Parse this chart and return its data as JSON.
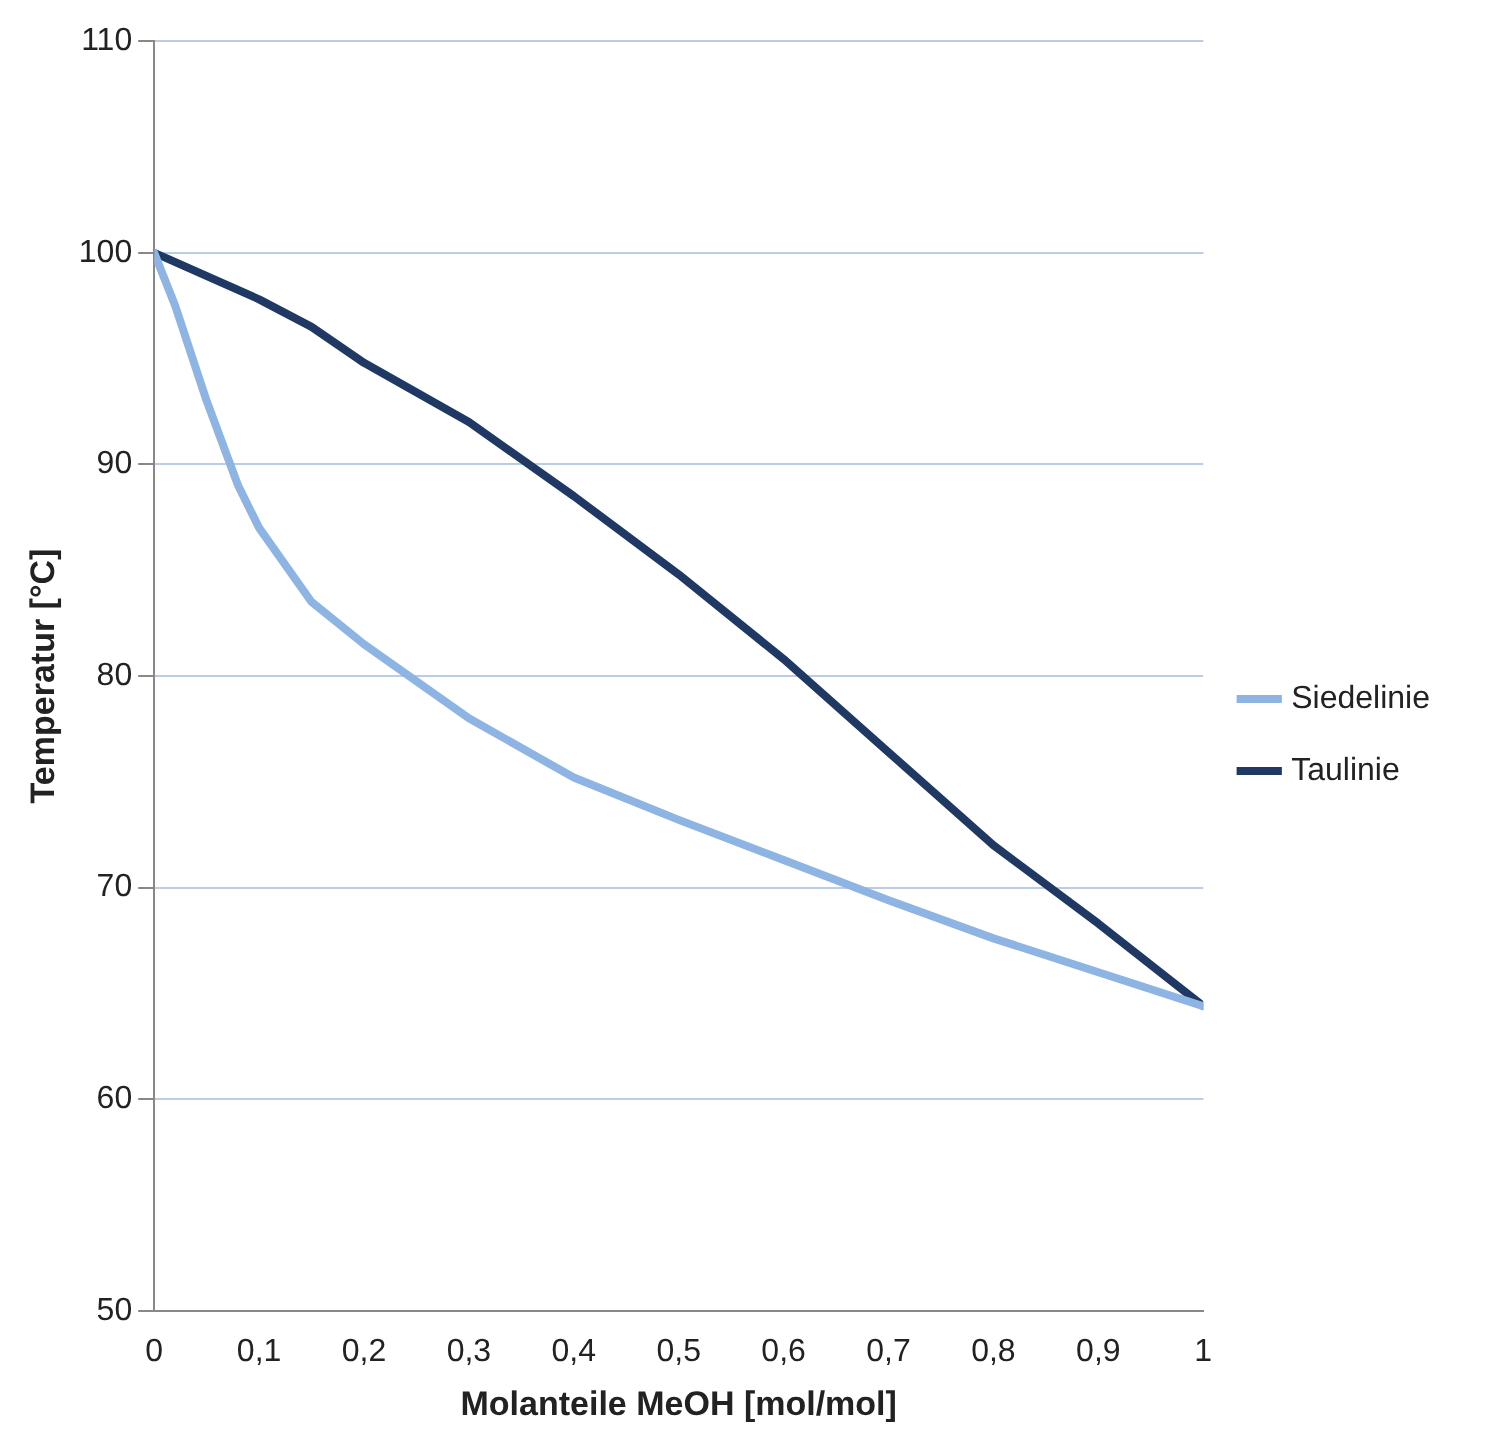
{
  "chart_data": {
    "type": "line",
    "xlabel": "Molanteile MeOH [mol/mol]",
    "ylabel": "Temperatur [°C]",
    "xlim": [
      0,
      1
    ],
    "xticks": [
      0,
      {
        "value": 0.1,
        "label": "0,1"
      },
      {
        "value": 0.2,
        "label": "0,2"
      },
      {
        "value": 0.3,
        "label": "0,3"
      },
      {
        "value": 0.4,
        "label": "0,4"
      },
      {
        "value": 0.5,
        "label": "0,5"
      },
      {
        "value": 0.6,
        "label": "0,6"
      },
      {
        "value": 0.7,
        "label": "0,7"
      },
      {
        "value": 0.8,
        "label": "0,8"
      },
      {
        "value": 0.9,
        "label": "0,9"
      },
      1
    ],
    "ylim": [
      50,
      110
    ],
    "yticks": [
      50,
      60,
      70,
      80,
      90,
      100,
      110
    ],
    "grid": "y",
    "legend": "right",
    "marker": "none",
    "line_style": "solid",
    "series": [
      {
        "name": "Siedelinie",
        "color": "#8eb4e3",
        "x": [
          0,
          0.02,
          0.05,
          0.08,
          0.1,
          0.15,
          0.2,
          0.3,
          0.4,
          0.5,
          0.6,
          0.7,
          0.8,
          0.9,
          1
        ],
        "values": [
          100,
          97.5,
          93,
          89,
          87,
          83.5,
          81.5,
          78,
          75.2,
          73.2,
          71.3,
          69.4,
          67.6,
          66,
          64.4
        ]
      },
      {
        "name": "Taulinie",
        "color": "#1f3864",
        "x": [
          0,
          0.1,
          0.15,
          0.2,
          0.3,
          0.4,
          0.5,
          0.6,
          0.7,
          0.8,
          0.9,
          1
        ],
        "values": [
          100,
          97.8,
          96.5,
          94.8,
          92,
          88.5,
          84.8,
          80.8,
          76.4,
          72,
          68.3,
          64.4
        ]
      }
    ]
  }
}
